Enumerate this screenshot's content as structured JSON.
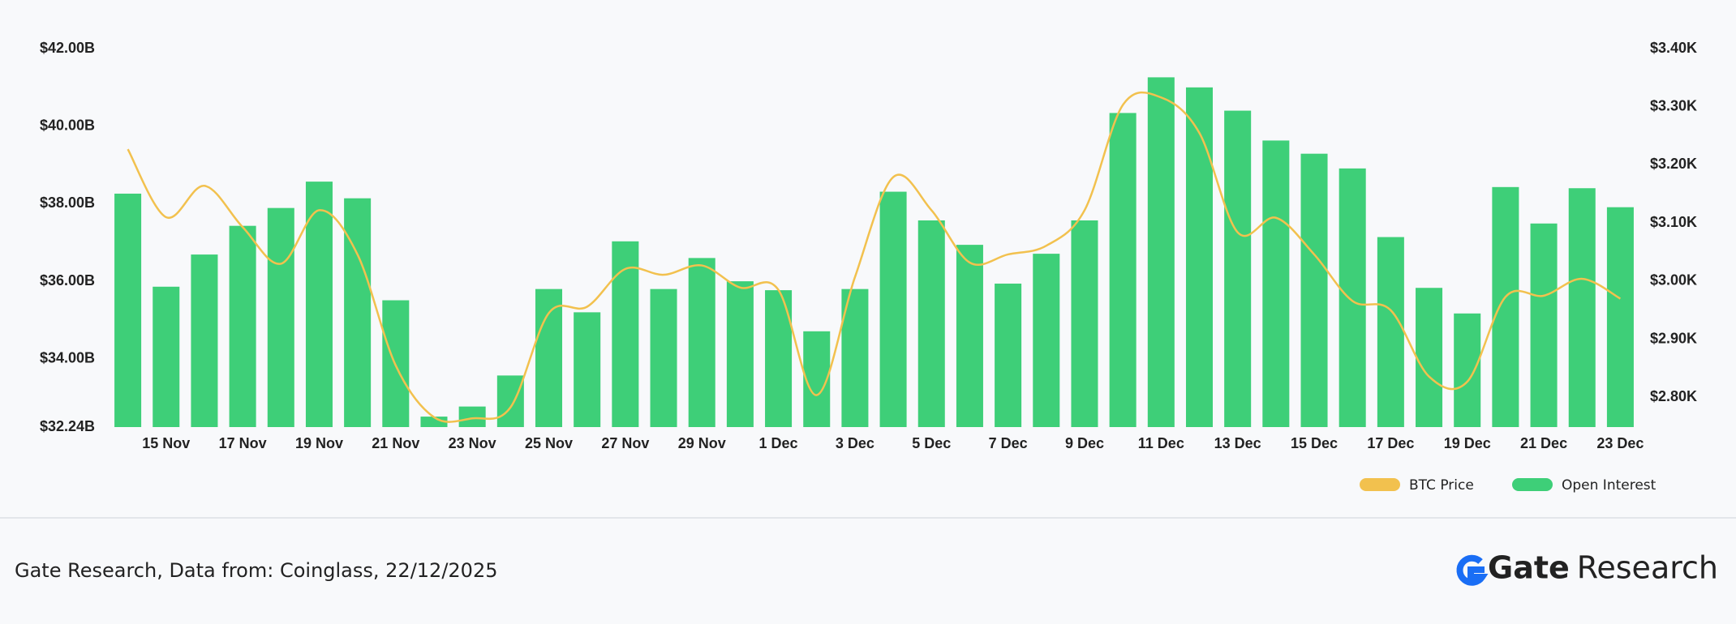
{
  "chart_data": {
    "type": "bar",
    "categories": [
      null,
      "15 Nov",
      null,
      "17 Nov",
      null,
      "19 Nov",
      null,
      "21 Nov",
      null,
      "23 Nov",
      null,
      "25 Nov",
      null,
      "27 Nov",
      null,
      "29 Nov",
      null,
      "1 Dec",
      null,
      "3 Dec",
      null,
      "5 Dec",
      null,
      "7 Dec",
      null,
      "9 Dec",
      null,
      "11 Dec",
      null,
      "13 Dec",
      null,
      "15 Dec",
      null,
      "17 Dec",
      null,
      "19 Dec",
      null,
      "21 Dec",
      null,
      "23 Dec"
    ],
    "series": [
      {
        "name": "BTC Price",
        "color": "#f2c14e",
        "type": "line",
        "axis": "y2",
        "values": [
          3.227,
          3.11,
          3.164,
          3.093,
          3.03,
          3.122,
          3.046,
          2.855,
          2.766,
          2.764,
          2.783,
          2.945,
          2.956,
          3.021,
          3.011,
          3.027,
          2.989,
          2.985,
          2.804,
          3.007,
          3.179,
          3.122,
          3.032,
          3.046,
          3.061,
          3.122,
          3.303,
          3.316,
          3.255,
          3.084,
          3.109,
          3.046,
          2.966,
          2.95,
          2.836,
          2.827,
          2.973,
          2.975,
          3.004,
          2.97
        ]
      },
      {
        "name": "Open Interest",
        "color": "#3ecf78",
        "type": "bar",
        "values": [
          38.26,
          35.86,
          36.69,
          37.43,
          37.89,
          38.57,
          38.14,
          35.51,
          32.51,
          32.77,
          33.57,
          35.8,
          35.2,
          37.03,
          35.8,
          36.6,
          36.0,
          35.77,
          34.71,
          35.8,
          38.31,
          37.57,
          36.94,
          35.94,
          36.71,
          37.57,
          40.34,
          41.26,
          41.0,
          40.4,
          39.63,
          39.29,
          38.91,
          37.14,
          35.83,
          35.17,
          38.43,
          37.49,
          38.4,
          37.91
        ]
      }
    ],
    "ylim": [
      32.24,
      42
    ],
    "yticks": [
      {
        "value": 32.24,
        "label": "$32.24B"
      },
      {
        "value": 34,
        "label": "$34.00B"
      },
      {
        "value": 36,
        "label": "$36.00B"
      },
      {
        "value": 38,
        "label": "$38.00B"
      },
      {
        "value": 40,
        "label": "$40.00B"
      },
      {
        "value": 42,
        "label": "$42.00B"
      }
    ],
    "y2lim": [
      2.749,
      3.4
    ],
    "y2ticks": [
      {
        "value": 2.8,
        "label": "$2.80K"
      },
      {
        "value": 2.9,
        "label": "$2.90K"
      },
      {
        "value": 3.0,
        "label": "$3.00K"
      },
      {
        "value": 3.1,
        "label": "$3.10K"
      },
      {
        "value": 3.2,
        "label": "$3.20K"
      },
      {
        "value": 3.3,
        "label": "$3.30K"
      },
      {
        "value": 3.4,
        "label": "$3.40K"
      }
    ],
    "grid": false,
    "legend": "bottom-right"
  },
  "footer": {
    "source": "Gate Research, Data from: Coinglass, 22/12/2025",
    "brand": "Gate",
    "brand_suffix": "Research"
  }
}
